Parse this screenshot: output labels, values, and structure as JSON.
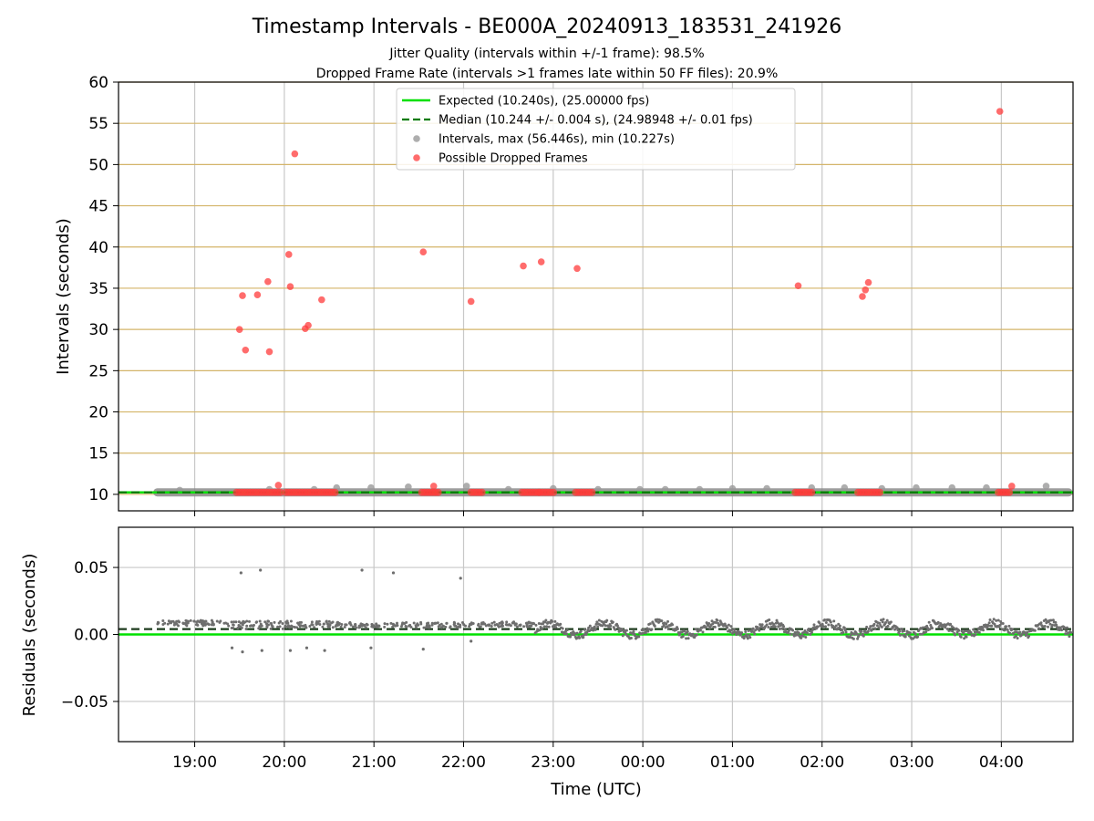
{
  "title": "Timestamp Intervals - BE000A_20240913_183531_241926",
  "subtitle_1": "Jitter Quality (intervals within +/-1 frame): 98.5%",
  "subtitle_2": "Dropped Frame Rate (intervals >1 frames late within 50 FF files): 20.9%",
  "colors": {
    "expected": "#00e000",
    "median": "#007a00",
    "intervals": "#9a9a9a",
    "dropped": "#ff3b3b",
    "residuals": "#6e6e6e",
    "hgrid_top": "#d4b56a",
    "grid": "#c8c8c8"
  },
  "chart_data": [
    {
      "type": "scatter",
      "panel": "intervals",
      "ylabel": "Intervals (seconds)",
      "ylim": [
        8,
        60
      ],
      "yticks": [
        "10",
        "15",
        "20",
        "25",
        "30",
        "35",
        "40",
        "45",
        "50",
        "55",
        "60"
      ],
      "xlim_hours": [
        18.15,
        28.8
      ],
      "grid": true,
      "legend_placement": "top-center",
      "legend": [
        {
          "key": "expected",
          "label": "Expected (10.240s), (25.00000 fps)"
        },
        {
          "key": "median",
          "label": "Median (10.244 +/- 0.004 s), (24.98948 +/- 0.01 fps)"
        },
        {
          "key": "intervals",
          "label": "Intervals, max (56.446s), min (10.227s)"
        },
        {
          "key": "dropped",
          "label": "Possible Dropped Frames"
        }
      ],
      "expected_value": 10.24,
      "median_value": 10.244,
      "interval_baseline": {
        "x_start": "18:35",
        "x_end": "04:45",
        "value": 10.24
      },
      "interval_points": [
        {
          "x": "18:50",
          "y": 10.5
        },
        {
          "x": "19:50",
          "y": 10.6
        },
        {
          "x": "20:20",
          "y": 10.6
        },
        {
          "x": "20:35",
          "y": 10.8
        },
        {
          "x": "20:58",
          "y": 10.8
        },
        {
          "x": "21:23",
          "y": 10.9
        },
        {
          "x": "22:02",
          "y": 11.0
        },
        {
          "x": "22:30",
          "y": 10.6
        },
        {
          "x": "23:00",
          "y": 10.7
        },
        {
          "x": "23:30",
          "y": 10.6
        },
        {
          "x": "23:58",
          "y": 10.6
        },
        {
          "x": "00:15",
          "y": 10.6
        },
        {
          "x": "00:38",
          "y": 10.6
        },
        {
          "x": "01:00",
          "y": 10.7
        },
        {
          "x": "01:23",
          "y": 10.7
        },
        {
          "x": "01:53",
          "y": 10.8
        },
        {
          "x": "02:15",
          "y": 10.8
        },
        {
          "x": "02:40",
          "y": 10.7
        },
        {
          "x": "03:03",
          "y": 10.8
        },
        {
          "x": "03:27",
          "y": 10.8
        },
        {
          "x": "03:50",
          "y": 10.8
        },
        {
          "x": "04:30",
          "y": 11.0
        }
      ],
      "dropped_points": [
        {
          "x": "19:30",
          "y": 30.0
        },
        {
          "x": "19:32",
          "y": 34.1
        },
        {
          "x": "19:34",
          "y": 27.5
        },
        {
          "x": "19:42",
          "y": 34.2
        },
        {
          "x": "19:49",
          "y": 35.8
        },
        {
          "x": "19:50",
          "y": 27.3
        },
        {
          "x": "19:56",
          "y": 11.1
        },
        {
          "x": "20:03",
          "y": 39.1
        },
        {
          "x": "20:04",
          "y": 35.2
        },
        {
          "x": "20:07",
          "y": 51.3
        },
        {
          "x": "20:14",
          "y": 30.1
        },
        {
          "x": "20:16",
          "y": 30.5
        },
        {
          "x": "20:25",
          "y": 33.6
        },
        {
          "x": "21:33",
          "y": 39.4
        },
        {
          "x": "21:40",
          "y": 11.0
        },
        {
          "x": "22:05",
          "y": 33.4
        },
        {
          "x": "22:40",
          "y": 37.7
        },
        {
          "x": "22:52",
          "y": 38.2
        },
        {
          "x": "23:16",
          "y": 37.4
        },
        {
          "x": "01:44",
          "y": 35.3
        },
        {
          "x": "02:27",
          "y": 34.0
        },
        {
          "x": "02:29",
          "y": 34.8
        },
        {
          "x": "02:31",
          "y": 35.7
        },
        {
          "x": "03:59",
          "y": 56.446
        },
        {
          "x": "04:07",
          "y": 11.0
        }
      ],
      "dropped_runs": [
        {
          "x_start": "19:28",
          "x_end": "19:58",
          "y": 10.24
        },
        {
          "x_start": "20:01",
          "x_end": "20:34",
          "y": 10.24
        },
        {
          "x_start": "21:32",
          "x_end": "21:43",
          "y": 10.24
        },
        {
          "x_start": "22:05",
          "x_end": "22:14",
          "y": 10.24
        },
        {
          "x_start": "22:39",
          "x_end": "22:50",
          "y": 10.24
        },
        {
          "x_start": "22:51",
          "x_end": "23:01",
          "y": 10.24
        },
        {
          "x_start": "23:15",
          "x_end": "23:27",
          "y": 10.24
        },
        {
          "x_start": "01:42",
          "x_end": "01:54",
          "y": 10.24
        },
        {
          "x_start": "02:24",
          "x_end": "02:39",
          "y": 10.24
        },
        {
          "x_start": "03:58",
          "x_end": "04:07",
          "y": 10.24
        }
      ]
    },
    {
      "type": "scatter",
      "panel": "residuals",
      "xlabel": "Time (UTC)",
      "ylabel": "Residuals (seconds)",
      "ylim": [
        -0.08,
        0.08
      ],
      "yticks": [
        "0.05",
        "0.00",
        "−0.05"
      ],
      "ytick_values": [
        0.05,
        0.0,
        -0.05
      ],
      "xticks": [
        "19:00",
        "20:00",
        "21:00",
        "22:00",
        "23:00",
        "00:00",
        "01:00",
        "02:00",
        "03:00",
        "04:00"
      ],
      "xlim_hours": [
        18.15,
        28.8
      ],
      "grid": true,
      "expected_value": 0.0,
      "median_value": 0.004,
      "outliers": [
        {
          "x": "19:31",
          "y": 0.046
        },
        {
          "x": "19:44",
          "y": 0.048
        },
        {
          "x": "20:52",
          "y": 0.048
        },
        {
          "x": "21:13",
          "y": 0.046
        },
        {
          "x": "21:58",
          "y": 0.042
        },
        {
          "x": "19:25",
          "y": -0.01
        },
        {
          "x": "19:32",
          "y": -0.013
        },
        {
          "x": "19:45",
          "y": -0.012
        },
        {
          "x": "20:04",
          "y": -0.012
        },
        {
          "x": "20:15",
          "y": -0.01
        },
        {
          "x": "20:27",
          "y": -0.012
        },
        {
          "x": "20:58",
          "y": -0.01
        },
        {
          "x": "21:33",
          "y": -0.011
        },
        {
          "x": "22:05",
          "y": -0.005
        }
      ]
    }
  ]
}
